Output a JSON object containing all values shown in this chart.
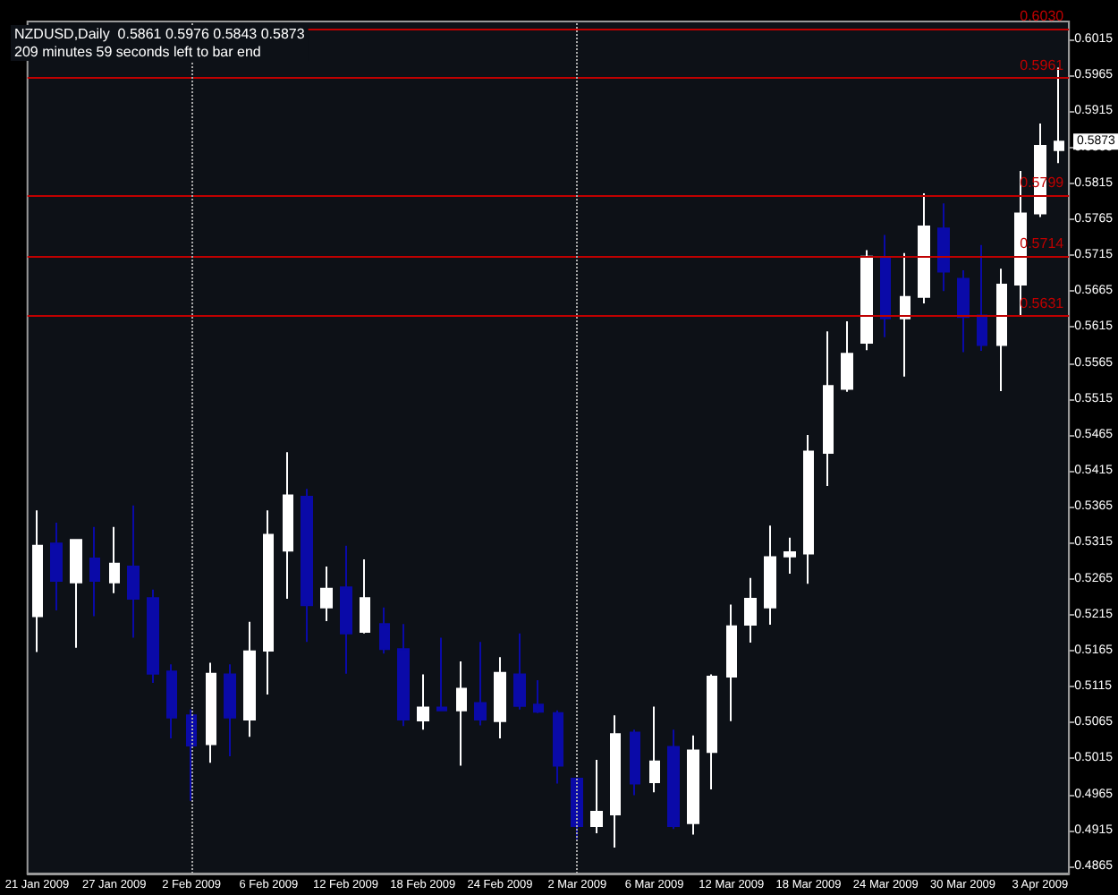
{
  "chart_data": {
    "type": "candlestick",
    "title": "NZDUSD,Daily  0.5861 0.5976 0.5843 0.5873",
    "subtitle": "209 minutes 59 seconds left to bar end",
    "categories": [
      "21 Jan 2009",
      null,
      null,
      null,
      "27 Jan 2009",
      null,
      null,
      null,
      "2 Feb 2009",
      null,
      null,
      null,
      "6 Feb 2009",
      null,
      null,
      null,
      "12 Feb 2009",
      null,
      null,
      null,
      "18 Feb 2009",
      null,
      null,
      null,
      "24 Feb 2009",
      null,
      null,
      null,
      "2 Mar 2009",
      null,
      null,
      null,
      "6 Mar 2009",
      null,
      null,
      null,
      "12 Mar 2009",
      null,
      null,
      null,
      "18 Mar 2009",
      null,
      null,
      null,
      "24 Mar 2009",
      null,
      null,
      null,
      "30 Mar 2009",
      null,
      null,
      null,
      "3 Apr 2009",
      null
    ],
    "ohlc": [
      [
        0.5213,
        0.536,
        0.5163,
        0.5311
      ],
      [
        0.5314,
        0.5343,
        0.5221,
        0.5262
      ],
      [
        0.526,
        0.5319,
        0.5169,
        0.5319
      ],
      [
        0.5293,
        0.5337,
        0.5213,
        0.5262
      ],
      [
        0.526,
        0.5337,
        0.5245,
        0.5286
      ],
      [
        0.5282,
        0.5367,
        0.5183,
        0.5237
      ],
      [
        0.5238,
        0.525,
        0.512,
        0.5133
      ],
      [
        0.5136,
        0.5146,
        0.5043,
        0.5072
      ],
      [
        0.5075,
        0.5083,
        0.4956,
        0.5033
      ],
      [
        0.5035,
        0.5148,
        0.5009,
        0.5133
      ],
      [
        0.5132,
        0.5146,
        0.5018,
        0.5072
      ],
      [
        0.5069,
        0.5205,
        0.5045,
        0.5164
      ],
      [
        0.5165,
        0.536,
        0.5104,
        0.5326
      ],
      [
        0.5304,
        0.5441,
        0.5237,
        0.5381
      ],
      [
        0.5379,
        0.539,
        0.5177,
        0.5228
      ],
      [
        0.5225,
        0.5282,
        0.5206,
        0.5251
      ],
      [
        0.5253,
        0.5311,
        0.5133,
        0.5189
      ],
      [
        0.5191,
        0.5292,
        0.5189,
        0.5238
      ],
      [
        0.5202,
        0.5225,
        0.5161,
        0.5167
      ],
      [
        0.5167,
        0.5202,
        0.506,
        0.5069
      ],
      [
        0.5068,
        0.5132,
        0.5055,
        0.5086
      ],
      [
        0.5086,
        0.5183,
        0.5082,
        0.5082
      ],
      [
        0.5082,
        0.515,
        0.5005,
        0.5112
      ],
      [
        0.5092,
        0.5177,
        0.5061,
        0.5069
      ],
      [
        0.5067,
        0.5156,
        0.5043,
        0.5134
      ],
      [
        0.5132,
        0.5189,
        0.5083,
        0.5088
      ],
      [
        0.509,
        0.5124,
        0.5078,
        0.508
      ],
      [
        0.5078,
        0.5082,
        0.498,
        0.5005
      ],
      [
        0.4987,
        0.4988,
        0.4903,
        0.4921
      ],
      [
        0.4921,
        0.5013,
        0.4911,
        0.4941
      ],
      [
        0.4937,
        0.5075,
        0.4891,
        0.5049
      ],
      [
        0.5051,
        0.5055,
        0.4964,
        0.498
      ],
      [
        0.4982,
        0.5087,
        0.4968,
        0.5011
      ],
      [
        0.5031,
        0.5055,
        0.4917,
        0.4921
      ],
      [
        0.4925,
        0.5047,
        0.4909,
        0.5026
      ],
      [
        0.5024,
        0.5132,
        0.4972,
        0.5129
      ],
      [
        0.5129,
        0.5229,
        0.5067,
        0.5199
      ],
      [
        0.5201,
        0.5266,
        0.5176,
        0.5237
      ],
      [
        0.5225,
        0.5339,
        0.5201,
        0.5295
      ],
      [
        0.5296,
        0.5322,
        0.5272,
        0.5302
      ],
      [
        0.53,
        0.5465,
        0.5258,
        0.5442
      ],
      [
        0.544,
        0.5609,
        0.5394,
        0.5533
      ],
      [
        0.5529,
        0.5623,
        0.5525,
        0.5578
      ],
      [
        0.5593,
        0.5722,
        0.5583,
        0.5713
      ],
      [
        0.5712,
        0.5743,
        0.5601,
        0.5627
      ],
      [
        0.5627,
        0.5718,
        0.5546,
        0.5657
      ],
      [
        0.5657,
        0.5801,
        0.5648,
        0.5755
      ],
      [
        0.5752,
        0.5787,
        0.5665,
        0.5692
      ],
      [
        0.5682,
        0.5694,
        0.558,
        0.5629
      ],
      [
        0.5631,
        0.5729,
        0.5582,
        0.559
      ],
      [
        0.559,
        0.5696,
        0.5526,
        0.5674
      ],
      [
        0.5674,
        0.5832,
        0.5631,
        0.5773
      ],
      [
        0.5773,
        0.5898,
        0.5768,
        0.5867
      ],
      [
        0.5861,
        0.5976,
        0.5843,
        0.5873
      ]
    ],
    "colors": [
      "#ffffff",
      "#0a0aa8",
      "#ffffff",
      "#0a0aa8",
      "#ffffff",
      "#0a0aa8",
      "#0a0aa8",
      "#0a0aa8",
      "#0a0aa8",
      "#ffffff",
      "#0a0aa8",
      "#ffffff",
      "#ffffff",
      "#ffffff",
      "#0a0aa8",
      "#ffffff",
      "#0a0aa8",
      "#ffffff",
      "#0a0aa8",
      "#0a0aa8",
      "#ffffff",
      "#0a0aa8",
      "#ffffff",
      "#0a0aa8",
      "#ffffff",
      "#0a0aa8",
      "#0a0aa8",
      "#0a0aa8",
      "#0a0aa8",
      "#ffffff",
      "#ffffff",
      "#0a0aa8",
      "#ffffff",
      "#0a0aa8",
      "#ffffff",
      "#ffffff",
      "#ffffff",
      "#ffffff",
      "#ffffff",
      "#ffffff",
      "#ffffff",
      "#ffffff",
      "#ffffff",
      "#ffffff",
      "#0a0aa8",
      "#ffffff",
      "#ffffff",
      "#0a0aa8",
      "#0a0aa8",
      "#0a0aa8",
      "#ffffff",
      "#ffffff",
      "#ffffff",
      "#ffffff"
    ],
    "ylim": [
      0.4855,
      0.604
    ],
    "yticks": [
      0.4865,
      0.4915,
      0.4965,
      0.5015,
      0.5065,
      0.5115,
      0.5165,
      0.5215,
      0.5265,
      0.5315,
      0.5365,
      0.5415,
      0.5465,
      0.5515,
      0.5565,
      0.5615,
      0.5665,
      0.5715,
      0.5765,
      0.5815,
      0.5865,
      0.5915,
      0.5965,
      0.6015
    ],
    "ref_lines": [
      {
        "axis": "y",
        "value": 0.603,
        "label": "0.6030",
        "color": "#c00000"
      },
      {
        "axis": "y",
        "value": 0.5961,
        "label": "0.5961",
        "color": "#c00000"
      },
      {
        "axis": "y",
        "value": 0.5799,
        "label": "0.5799",
        "color": "#c00000"
      },
      {
        "axis": "y",
        "value": 0.5714,
        "label": "0.5714",
        "color": "#c00000"
      },
      {
        "axis": "y",
        "value": 0.5631,
        "label": "0.5631",
        "color": "#c00000"
      },
      {
        "axis": "x",
        "value": "2 Feb 2009",
        "color": "#aaaaaa",
        "line_style": "dotted"
      },
      {
        "axis": "x",
        "value": "2 Mar 2009",
        "color": "#aaaaaa",
        "line_style": "dotted"
      }
    ],
    "annotations": [
      {
        "text": "0.5873",
        "y": 0.5873
      }
    ],
    "grid": false
  }
}
